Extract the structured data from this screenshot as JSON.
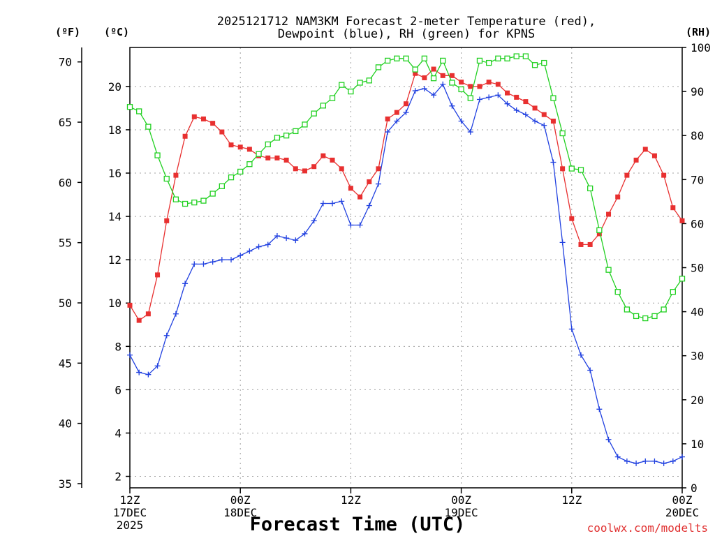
{
  "title_line1": "2025121712 NAM3KM Forecast 2-meter Temperature (red),",
  "title_line2": "Dewpoint (blue), RH (green) for KPNS",
  "unit_f": "(ºF)",
  "unit_c": "(ºC)",
  "unit_rh": "(RH)",
  "xlabel": "Forecast Time (UTC)",
  "credit": "coolwx.com/modelts",
  "chart_data": {
    "type": "line",
    "title": "2025121712 NAM3KM Forecast 2-meter Temperature (red), Dewpoint (blue), RH (green) for KPNS",
    "xlabel": "Forecast Time (UTC)",
    "x_unit": "forecast hour from 2025-12-17 12Z",
    "xlim": [
      0,
      60
    ],
    "grid": true,
    "x_ticks": [
      {
        "hour": 0,
        "lines": [
          "12Z",
          "17DEC",
          "2025"
        ]
      },
      {
        "hour": 12,
        "lines": [
          "00Z",
          "18DEC"
        ]
      },
      {
        "hour": 24,
        "lines": [
          "12Z"
        ]
      },
      {
        "hour": 36,
        "lines": [
          "00Z",
          "19DEC"
        ]
      },
      {
        "hour": 48,
        "lines": [
          "12Z"
        ]
      },
      {
        "hour": 60,
        "lines": [
          "00Z",
          "20DEC"
        ]
      }
    ],
    "y_left_f": {
      "label": "(ºF)",
      "lim": [
        34.65,
        71.2
      ],
      "ticks": [
        35,
        40,
        45,
        50,
        55,
        60,
        65,
        70
      ]
    },
    "y_left_c": {
      "label": "(ºC)",
      "lim": [
        1.47,
        21.8
      ],
      "ticks": [
        2,
        4,
        6,
        8,
        10,
        12,
        14,
        16,
        18,
        20
      ]
    },
    "y_right": {
      "label": "(RH)",
      "lim": [
        0,
        100
      ],
      "ticks": [
        0,
        10,
        20,
        30,
        40,
        50,
        60,
        70,
        80,
        90,
        100
      ]
    },
    "series": [
      {
        "name": "2-meter Temperature",
        "units": "°C",
        "axis": "celsius",
        "color": "#e83030",
        "marker": "filled-square",
        "x": [
          0,
          1,
          2,
          3,
          4,
          5,
          6,
          7,
          8,
          9,
          10,
          11,
          12,
          13,
          14,
          15,
          16,
          17,
          18,
          19,
          20,
          21,
          22,
          23,
          24,
          25,
          26,
          27,
          28,
          29,
          30,
          31,
          32,
          33,
          34,
          35,
          36,
          37,
          38,
          39,
          40,
          41,
          42,
          43,
          44,
          45,
          46,
          47,
          48,
          49,
          50,
          51,
          52,
          53,
          54,
          55,
          56,
          57,
          58,
          59,
          60
        ],
        "values": [
          9.9,
          9.2,
          9.5,
          11.3,
          13.8,
          15.9,
          17.7,
          18.6,
          18.5,
          18.3,
          17.9,
          17.3,
          17.2,
          17.1,
          16.8,
          16.7,
          16.7,
          16.6,
          16.2,
          16.1,
          16.3,
          16.8,
          16.6,
          16.2,
          15.3,
          14.9,
          15.6,
          16.2,
          18.5,
          18.8,
          19.2,
          20.6,
          20.4,
          20.8,
          20.5,
          20.5,
          20.2,
          20.0,
          20.0,
          20.2,
          20.1,
          19.7,
          19.5,
          19.3,
          19.0,
          18.7,
          18.4,
          16.2,
          13.9,
          12.7,
          12.7,
          13.2,
          14.1,
          14.9,
          15.9,
          16.6,
          17.1,
          16.8,
          15.9,
          14.4,
          13.8
        ]
      },
      {
        "name": "Dewpoint",
        "units": "°C",
        "axis": "celsius",
        "color": "#2040e0",
        "marker": "plus",
        "x": [
          0,
          1,
          2,
          3,
          4,
          5,
          6,
          7,
          8,
          9,
          10,
          11,
          12,
          13,
          14,
          15,
          16,
          17,
          18,
          19,
          20,
          21,
          22,
          23,
          24,
          25,
          26,
          27,
          28,
          29,
          30,
          31,
          32,
          33,
          34,
          35,
          36,
          37,
          38,
          39,
          40,
          41,
          42,
          43,
          44,
          45,
          46,
          47,
          48,
          49,
          50,
          51,
          52,
          53,
          54,
          55,
          56,
          57,
          58,
          59,
          60
        ],
        "values": [
          7.6,
          6.8,
          6.7,
          7.1,
          8.5,
          9.5,
          10.9,
          11.8,
          11.8,
          11.9,
          12.0,
          12.0,
          12.2,
          12.4,
          12.6,
          12.7,
          13.1,
          13.0,
          12.9,
          13.2,
          13.8,
          14.6,
          14.6,
          14.7,
          13.6,
          13.6,
          14.5,
          15.5,
          17.9,
          18.4,
          18.8,
          19.8,
          19.9,
          19.6,
          20.1,
          19.1,
          18.4,
          17.9,
          19.4,
          19.5,
          19.6,
          19.2,
          18.9,
          18.7,
          18.4,
          18.2,
          16.5,
          12.8,
          8.8,
          7.6,
          6.9,
          5.1,
          3.7,
          2.9,
          2.7,
          2.6,
          2.7,
          2.7,
          2.6,
          2.7,
          2.9
        ]
      },
      {
        "name": "RH",
        "units": "%",
        "axis": "rh",
        "color": "#20d020",
        "marker": "open-square",
        "x": [
          0,
          1,
          2,
          3,
          4,
          5,
          6,
          7,
          8,
          9,
          10,
          11,
          12,
          13,
          14,
          15,
          16,
          17,
          18,
          19,
          20,
          21,
          22,
          23,
          24,
          25,
          26,
          27,
          28,
          29,
          30,
          31,
          32,
          33,
          34,
          35,
          36,
          37,
          38,
          39,
          40,
          41,
          42,
          43,
          44,
          45,
          46,
          47,
          48,
          49,
          50,
          51,
          52,
          53,
          54,
          55,
          56,
          57,
          58,
          59,
          60
        ],
        "values": [
          86.5,
          85.5,
          82,
          75.5,
          70.2,
          65.5,
          64.5,
          64.8,
          65.2,
          66.8,
          68.5,
          70.5,
          71.8,
          73.5,
          75.8,
          78,
          79.5,
          80,
          81,
          82.5,
          85,
          86.8,
          88.5,
          91.5,
          90,
          92,
          92.5,
          95.5,
          97,
          97.5,
          97.5,
          95,
          97.5,
          93,
          97,
          92,
          90.5,
          88.5,
          97,
          96.5,
          97.5,
          97.5,
          98,
          98,
          96,
          96.5,
          88.5,
          80.5,
          72.5,
          72.2,
          68,
          58.5,
          49.5,
          44.5,
          40.5,
          39,
          38.5,
          39,
          40.5,
          44.5,
          47.5
        ]
      }
    ]
  }
}
